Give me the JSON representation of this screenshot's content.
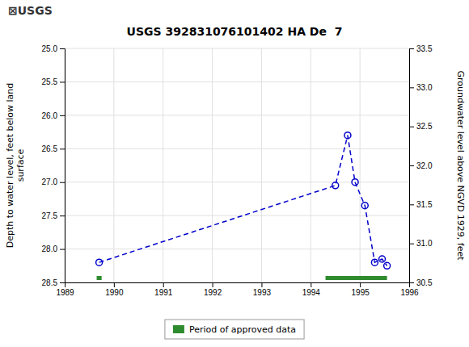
{
  "chart_data": {
    "type": "line",
    "title": "USGS 392831076101402 HA De  7",
    "annotations": [
      "⊠USGS"
    ],
    "ylabel": "Depth to water level, feet below land\nsurface",
    "y2label": "Groundwater level above NGVD 1929, feet",
    "xlim": [
      1989,
      1996
    ],
    "xticks": [
      1989,
      1990,
      1991,
      1992,
      1993,
      1994,
      1995,
      1996
    ],
    "ylim": [
      28.5,
      25.0
    ],
    "yticks": [
      {
        "value": 25.0,
        "label": "25.0"
      },
      25.5,
      {
        "value": 26.0,
        "label": "26.0"
      },
      26.5,
      {
        "value": 27.0,
        "label": "27.0"
      },
      27.5,
      {
        "value": 28.0,
        "label": "28.0"
      },
      28.5
    ],
    "y2lim": [
      30.5,
      33.5
    ],
    "y2ticks": [
      30.5,
      {
        "value": 31.0,
        "label": "31.0"
      },
      31.5,
      {
        "value": 32.0,
        "label": "32.0"
      },
      32.5,
      {
        "value": 33.0,
        "label": "33.0"
      },
      33.5
    ],
    "grid": true,
    "legend": "bottom",
    "x": [
      1989.7,
      1994.5,
      1994.75,
      1994.9,
      1995.1,
      1995.3,
      1995.45,
      1995.55
    ],
    "series": [
      {
        "type": "line",
        "color": "#0000cc",
        "marker": "circle",
        "line_style": "dashed",
        "values": [
          28.2,
          27.05,
          26.3,
          27.0,
          27.35,
          28.2,
          28.15,
          28.25
        ]
      },
      {
        "name": "Period of approved data",
        "type": "range",
        "color": "#2e8b2e",
        "x_start": [
          1989.65,
          1994.3
        ],
        "x_end": [
          1989.75,
          1995.55
        ]
      }
    ]
  }
}
